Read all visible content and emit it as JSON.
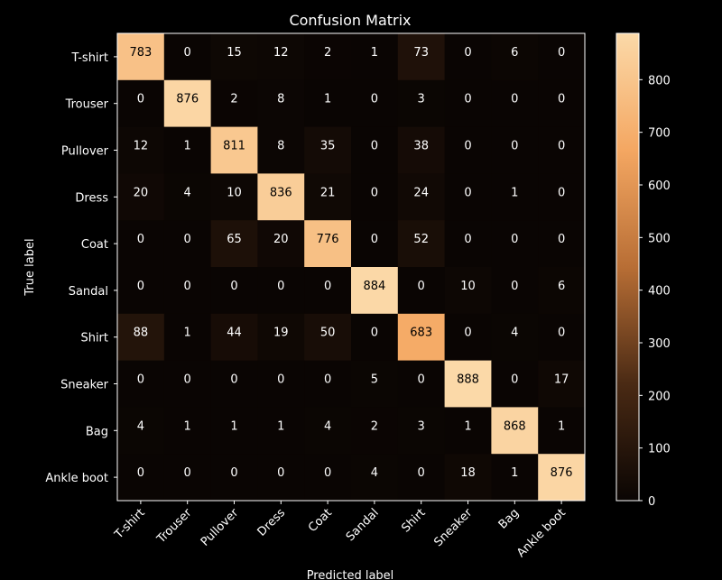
{
  "chart_data": {
    "type": "heatmap",
    "title": "Confusion Matrix",
    "xlabel": "Predicted label",
    "ylabel": "True label",
    "x_categories": [
      "T-shirt",
      "Trouser",
      "Pullover",
      "Dress",
      "Coat",
      "Sandal",
      "Shirt",
      "Sneaker",
      "Bag",
      "Ankle boot"
    ],
    "y_categories": [
      "T-shirt",
      "Trouser",
      "Pullover",
      "Dress",
      "Coat",
      "Sandal",
      "Shirt",
      "Sneaker",
      "Bag",
      "Ankle boot"
    ],
    "values": [
      [
        783,
        0,
        15,
        12,
        2,
        1,
        73,
        0,
        6,
        0
      ],
      [
        0,
        876,
        2,
        8,
        1,
        0,
        3,
        0,
        0,
        0
      ],
      [
        12,
        1,
        811,
        8,
        35,
        0,
        38,
        0,
        0,
        0
      ],
      [
        20,
        4,
        10,
        836,
        21,
        0,
        24,
        0,
        1,
        0
      ],
      [
        0,
        0,
        65,
        20,
        776,
        0,
        52,
        0,
        0,
        0
      ],
      [
        0,
        0,
        0,
        0,
        0,
        884,
        0,
        10,
        0,
        6
      ],
      [
        88,
        1,
        44,
        19,
        50,
        0,
        683,
        0,
        4,
        0
      ],
      [
        0,
        0,
        0,
        0,
        0,
        5,
        0,
        888,
        0,
        17
      ],
      [
        4,
        1,
        1,
        1,
        4,
        2,
        3,
        1,
        868,
        1
      ],
      [
        0,
        0,
        0,
        0,
        0,
        4,
        0,
        18,
        1,
        876
      ]
    ],
    "colorbar": {
      "range": [
        0,
        888
      ],
      "ticks": [
        0,
        100,
        200,
        300,
        400,
        500,
        600,
        700,
        800
      ],
      "colormap": [
        "#0a0503",
        "#4a2a14",
        "#b86e35",
        "#f4a762",
        "#fbd9a8"
      ]
    },
    "text_color_dark": "#000000",
    "text_color_light": "#ffffff",
    "grid": false
  }
}
